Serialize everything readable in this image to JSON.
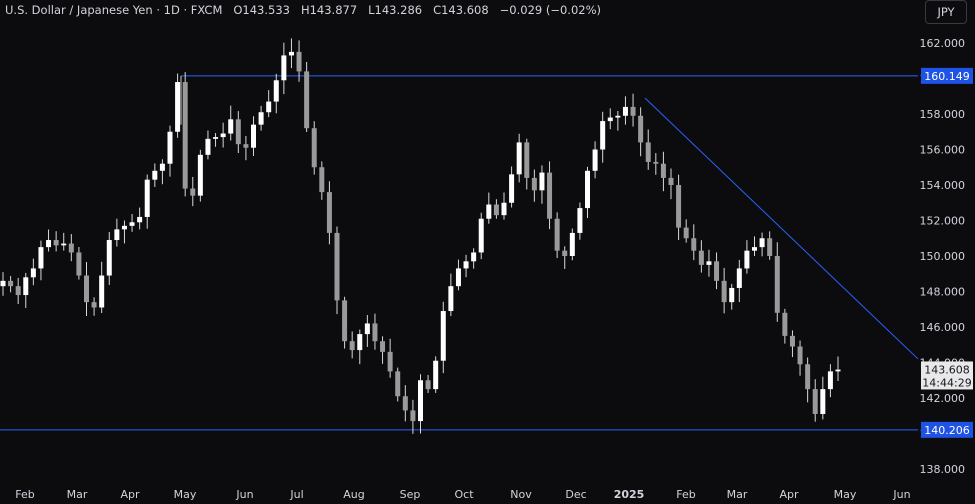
{
  "legend": {
    "symbol": "U.S. Dollar / Japanese Yen · 1D · FXCM",
    "open_label": "O",
    "open": "143.533",
    "high_label": "H",
    "high": "143.877",
    "low_label": "L",
    "low": "143.286",
    "close_label": "C",
    "close": "143.608",
    "change": "−0.029 (−0.02%)"
  },
  "currency_button": "JPY",
  "colors": {
    "background": "#0c0c0e",
    "candle": "#d9d9d9",
    "line": "#2962ff",
    "label_bg": "#1e53e5"
  },
  "chart_data": {
    "type": "candlestick",
    "y_axis_ticks": [
      "162.000",
      "160.000",
      "158.000",
      "156.000",
      "154.000",
      "152.000",
      "150.000",
      "148.000",
      "146.000",
      "144.000",
      "142.000",
      "140.000",
      "138.000"
    ],
    "x_axis_labels": [
      "Feb",
      "Mar",
      "Apr",
      "May",
      "Jun",
      "Jul",
      "Aug",
      "Sep",
      "Oct",
      "Nov",
      "Dec",
      "2025",
      "Feb",
      "Mar",
      "Apr",
      "May",
      "Jun"
    ],
    "ylim": [
      137.3,
      164.4
    ],
    "grid": false,
    "resistance_level": {
      "price": 160.149,
      "label": "160.149"
    },
    "support_level": {
      "price": 140.206,
      "label": "140.206"
    },
    "trendline": {
      "from": {
        "date": "2025-01-10",
        "price": 158.9
      },
      "to": {
        "date": "2025-05-24",
        "price": 144.2
      }
    },
    "last_price": {
      "price": 143.608,
      "label": "143.608",
      "countdown": "14:44:29"
    },
    "series": [
      {
        "values": [
          148.6,
          148.3,
          147.8,
          148.8,
          149.3,
          150.5,
          150.9,
          150.6,
          150.7,
          150.2,
          148.9,
          147.4,
          147.1,
          148.9,
          150.9,
          151.5,
          151.7,
          151.9,
          152.2,
          154.3,
          154.8,
          155.2,
          157.0,
          159.8,
          153.8,
          153.4,
          155.7,
          156.6,
          156.7,
          156.9,
          157.7,
          156.3,
          156.1,
          157.4,
          158.1,
          158.7,
          159.9,
          161.3,
          161.5,
          160.4,
          157.2,
          155.0,
          153.6,
          151.3,
          147.5,
          145.2,
          144.7,
          145.6,
          146.2,
          145.2,
          144.6,
          143.5,
          142.1,
          141.3,
          140.7,
          143.0,
          142.5,
          144.1,
          146.9,
          148.3,
          149.3,
          149.7,
          150.2,
          152.1,
          152.9,
          152.3,
          153.0,
          154.6,
          156.4,
          154.4,
          153.7,
          154.7,
          152.1,
          150.3,
          150.0,
          151.3,
          152.7,
          154.8,
          156.0,
          157.6,
          157.8,
          157.9,
          158.4,
          157.9,
          156.4,
          155.3,
          155.2,
          154.4,
          154.0,
          151.6,
          151.0,
          150.3,
          149.5,
          149.7,
          148.6,
          147.4,
          148.2,
          149.3,
          150.3,
          150.5,
          151.0,
          150.0,
          146.8,
          145.5,
          144.9,
          143.9,
          142.5,
          141.1,
          142.5,
          143.5,
          143.6
        ]
      }
    ]
  }
}
